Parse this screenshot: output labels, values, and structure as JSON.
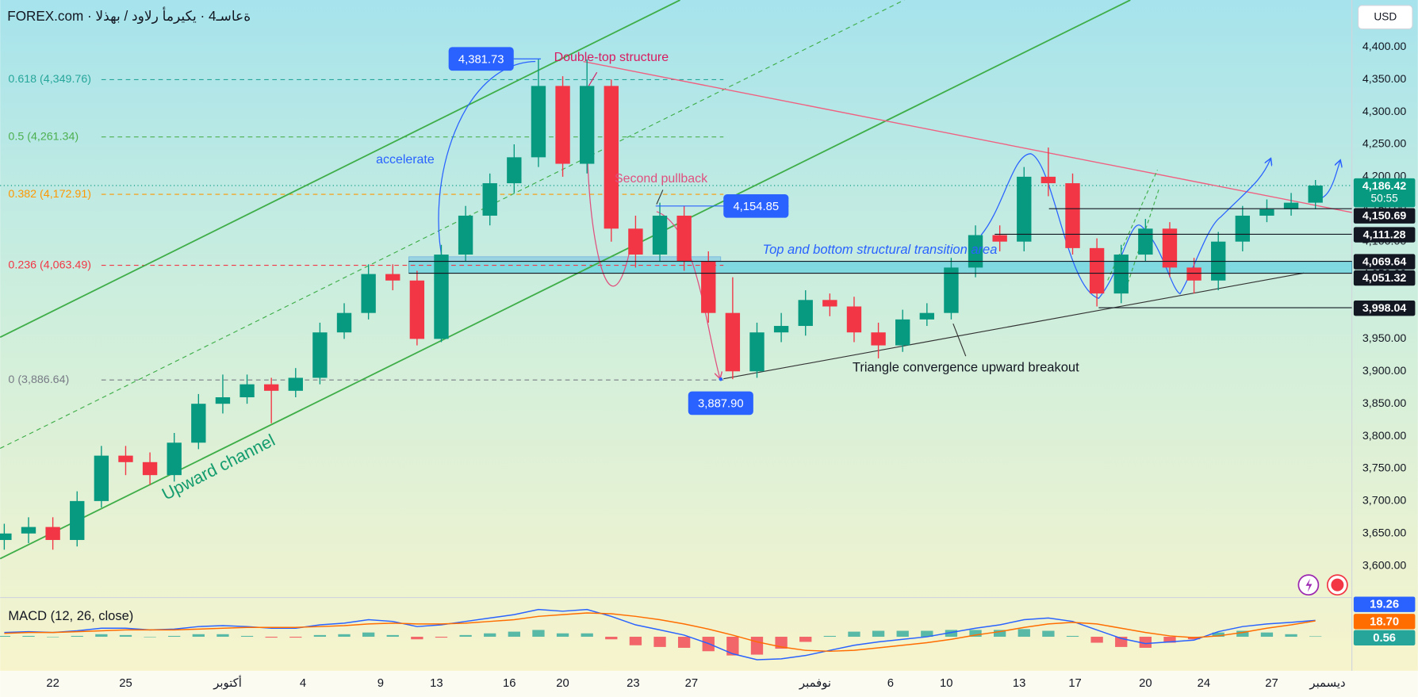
{
  "header": {
    "title": "FOREX.com · ةعاسـ4 · يكيرمأ رلاود / بهذلا",
    "currency": "USD"
  },
  "chart_data": [
    {
      "type": "candlestick",
      "open": [
        3640,
        3650,
        3660,
        3640,
        3700,
        3770,
        3760,
        3740,
        3790,
        3850,
        3860,
        3880,
        3870,
        3890,
        3960,
        3990,
        4050,
        4040,
        3950,
        4080,
        4140,
        4190,
        4230,
        4340,
        4220,
        4340,
        4120,
        4080,
        4140,
        4070,
        3990,
        3900,
        3960,
        3970,
        4010,
        4000,
        3960,
        3940,
        3980,
        3990,
        4060,
        4110,
        4100,
        4200,
        4190,
        4090,
        4020,
        4080,
        4120,
        4060,
        4040,
        4100,
        4140,
        4150,
        4160
      ],
      "high": [
        3665,
        3675,
        3675,
        3715,
        3785,
        3785,
        3775,
        3805,
        3865,
        3895,
        3895,
        3890,
        3905,
        3975,
        4005,
        4065,
        4065,
        4055,
        4095,
        4155,
        4205,
        4250,
        4382,
        4355,
        4381,
        4350,
        4140,
        4160,
        4155,
        4085,
        4045,
        3975,
        3990,
        4025,
        4020,
        4015,
        3975,
        3995,
        4005,
        4075,
        4125,
        4125,
        4215,
        4245,
        4205,
        4105,
        4095,
        4135,
        4130,
        4075,
        4115,
        4155,
        4165,
        4175,
        4195
      ],
      "low": [
        3625,
        3635,
        3625,
        3630,
        3690,
        3740,
        3725,
        3730,
        3780,
        3835,
        3850,
        3820,
        3860,
        3880,
        3950,
        3980,
        4025,
        3940,
        3945,
        4070,
        4125,
        4175,
        4215,
        4200,
        4205,
        4100,
        4060,
        4070,
        4055,
        3975,
        3888,
        3890,
        3945,
        3955,
        3985,
        3945,
        3920,
        3930,
        3970,
        3980,
        4045,
        4085,
        4085,
        4170,
        4080,
        4000,
        4005,
        4070,
        4045,
        4020,
        4025,
        4085,
        4130,
        4140,
        4150
      ],
      "close": [
        3650,
        3660,
        3640,
        3700,
        3770,
        3760,
        3740,
        3790,
        3850,
        3860,
        3880,
        3870,
        3890,
        3960,
        3990,
        4050,
        4040,
        3950,
        4080,
        4140,
        4190,
        4230,
        4340,
        4220,
        4340,
        4120,
        4080,
        4140,
        4070,
        3990,
        3900,
        3960,
        3970,
        4010,
        4000,
        3960,
        3940,
        3980,
        3990,
        4060,
        4110,
        4100,
        4200,
        4190,
        4090,
        4020,
        4080,
        4120,
        4060,
        4040,
        4100,
        4140,
        4150,
        4160,
        4186.42
      ],
      "colors": {
        "up": "#089981",
        "down": "#f23645"
      },
      "xlim": [
        -0.17,
        55.5
      ],
      "xticks": [
        {
          "value": 2,
          "label": "22"
        },
        {
          "value": 5,
          "label": "25"
        },
        {
          "value": 9.2,
          "label": "أكتوبر"
        },
        {
          "value": 12.3,
          "label": "4"
        },
        {
          "value": 15.5,
          "label": "9"
        },
        {
          "value": 17.8,
          "label": "13"
        },
        {
          "value": 20.8,
          "label": "16"
        },
        {
          "value": 23,
          "label": "20"
        },
        {
          "value": 25.9,
          "label": "23"
        },
        {
          "value": 28.3,
          "label": "27"
        },
        {
          "value": 33.4,
          "label": "نوفمبر"
        },
        {
          "value": 36.5,
          "label": "6"
        },
        {
          "value": 38.8,
          "label": "10"
        },
        {
          "value": 41.8,
          "label": "13"
        },
        {
          "value": 44.1,
          "label": "17"
        },
        {
          "value": 47,
          "label": "20"
        },
        {
          "value": 49.4,
          "label": "24"
        },
        {
          "value": 52.2,
          "label": "27"
        },
        {
          "value": 54.5,
          "label": "ديسمبر"
        }
      ],
      "ylim": [
        3552.6,
        4472.5
      ],
      "yticks": [
        {
          "value": 3600,
          "label": "3,600.00"
        },
        {
          "value": 3650,
          "label": "3,650.00"
        },
        {
          "value": 3700,
          "label": "3,700.00"
        },
        {
          "value": 3750,
          "label": "3,750.00"
        },
        {
          "value": 3800,
          "label": "3,800.00"
        },
        {
          "value": 3850,
          "label": "3,850.00"
        },
        {
          "value": 3900,
          "label": "3,900.00"
        },
        {
          "value": 3950,
          "label": "3,950.00"
        },
        {
          "value": 4000,
          "label": "4,000.00"
        },
        {
          "value": 4050,
          "label": "4,050.00"
        },
        {
          "value": 4100,
          "label": "4,100.00"
        },
        {
          "value": 4150,
          "label": "4,150.00"
        },
        {
          "value": 4200,
          "label": "4,200.00"
        },
        {
          "value": 4250,
          "label": "4,250.00"
        },
        {
          "value": 4300,
          "label": "4,300.00"
        },
        {
          "value": 4350,
          "label": "4,350.00"
        },
        {
          "value": 4400,
          "label": "4,400.00"
        }
      ],
      "grid": false,
      "fib_levels": [
        {
          "value": 4349.76,
          "label": "0.618 (4,349.76)",
          "color": "#26a69a"
        },
        {
          "value": 4261.34,
          "label": "0.5 (4,261.34)",
          "color": "#4caf50"
        },
        {
          "value": 4172.91,
          "label": "0.382 (4,172.91)",
          "color": "#ff9800"
        },
        {
          "value": 4063.49,
          "label": "0.236 (4,063.49)",
          "color": "#f23645"
        },
        {
          "value": 3886.64,
          "label": "0 (3,886.64)",
          "color": "#787b86"
        }
      ],
      "current_price": {
        "value": 4186.42,
        "label": "4,186.42",
        "countdown": "50:55",
        "color": "#089981"
      },
      "price_levels": [
        {
          "value": 4150.69,
          "label": "4,150.69"
        },
        {
          "value": 4111.28,
          "label": "4,111.28"
        },
        {
          "value": 4069.64,
          "label": "4,069.64"
        },
        {
          "value": 4051.32,
          "label": "4,051.32"
        },
        {
          "value": 3998.04,
          "label": "3,998.04"
        }
      ],
      "price_callouts": [
        {
          "value": 4381.73,
          "label": "4,381.73"
        },
        {
          "value": 4154.85,
          "label": "4,154.85"
        },
        {
          "value": 3887.9,
          "label": "3,887.90"
        }
      ],
      "annotations": [
        {
          "text": "Double-top structure",
          "color": "#d81b60"
        },
        {
          "text": "Second pullback",
          "color": "#e0507f"
        },
        {
          "text": "accelerate",
          "color": "#2962ff"
        },
        {
          "text": "Top and bottom structural transition area",
          "color": "#2962ff"
        },
        {
          "text": "Triangle convergence upward breakout",
          "color": "#131722"
        },
        {
          "text": "Upward channel",
          "color": "#149c6e"
        }
      ]
    },
    {
      "type": "macd",
      "title": "MACD (12, 26, close)",
      "ylim": [
        -40,
        45
      ],
      "series": [
        {
          "color": "#2962ff",
          "values": [
            5,
            6,
            5,
            7,
            10,
            10,
            8,
            9,
            12,
            13,
            12,
            10,
            10,
            14,
            16,
            20,
            18,
            12,
            14,
            18,
            22,
            26,
            32,
            30,
            32,
            24,
            14,
            8,
            2,
            -8,
            -20,
            -27,
            -26,
            -22,
            -16,
            -10,
            -6,
            -3,
            0,
            5,
            10,
            14,
            20,
            22,
            18,
            8,
            -2,
            -8,
            -6,
            -4,
            6,
            12,
            15,
            17,
            19.26
          ]
        },
        {
          "color": "#ff6d00",
          "values": [
            4,
            5,
            5,
            6,
            7,
            8,
            8,
            8,
            9,
            10,
            11,
            11,
            11,
            12,
            13,
            15,
            16,
            15,
            15,
            16,
            18,
            20,
            24,
            26,
            28,
            27,
            24,
            20,
            15,
            9,
            2,
            -6,
            -12,
            -16,
            -17,
            -16,
            -13,
            -10,
            -7,
            -3,
            2,
            6,
            11,
            15,
            17,
            15,
            10,
            5,
            1,
            -1,
            1,
            5,
            10,
            14,
            18.7
          ],
          "value_labels": [
            null,
            null,
            null,
            null,
            null,
            null,
            null,
            null,
            null,
            null,
            null,
            null,
            null,
            null,
            null,
            null,
            null,
            null,
            null,
            null,
            null,
            null,
            null,
            null,
            null,
            null,
            null,
            null,
            null,
            null,
            null,
            null,
            null,
            null,
            null,
            null,
            null,
            null,
            null,
            null,
            null,
            null,
            null,
            null,
            null,
            null,
            null,
            null,
            null,
            null,
            null,
            null,
            null,
            null,
            "18.70"
          ]
        },
        {
          "color": "#26a69a",
          "negative_color": "#f23645",
          "kind": "histogram",
          "values": [
            1,
            1,
            0,
            1,
            3,
            2,
            0,
            1,
            3,
            3,
            1,
            -1,
            -1,
            2,
            3,
            5,
            2,
            -3,
            -1,
            2,
            4,
            6,
            8,
            4,
            4,
            -3,
            -10,
            -12,
            -13,
            -17,
            -22,
            -21,
            -14,
            -6,
            1,
            6,
            7,
            7,
            7,
            8,
            8,
            8,
            9,
            7,
            1,
            -7,
            -12,
            -13,
            -7,
            -3,
            5,
            7,
            5,
            3,
            0.56
          ]
        }
      ]
    }
  ]
}
